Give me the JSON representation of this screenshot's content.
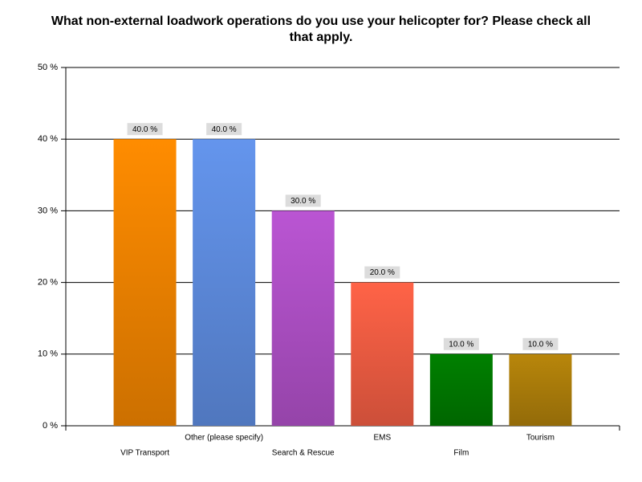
{
  "chart_data": {
    "type": "bar",
    "title": "What non-external loadwork operations do you use your helicopter for? Please check all that apply.",
    "categories": [
      "VIP Transport",
      "Other (please specify)",
      "Search & Rescue",
      "EMS",
      "Film",
      "Tourism"
    ],
    "values": [
      40,
      40,
      30,
      20,
      10,
      10
    ],
    "value_labels": [
      "40.0 %",
      "40.0 %",
      "30.0 %",
      "20.0 %",
      "10.0 %",
      "10.0 %"
    ],
    "colors": [
      "#ff8c00",
      "#6495ed",
      "#ba55d3",
      "#ff6347",
      "#008000",
      "#b8860b"
    ],
    "ylim": [
      0,
      50
    ],
    "yticks": [
      {
        "value": 0,
        "label": "0 %"
      },
      {
        "value": 10,
        "label": "10 %"
      },
      {
        "value": 20,
        "label": "20 %"
      },
      {
        "value": 30,
        "label": "30 %"
      },
      {
        "value": 40,
        "label": "40 %"
      },
      {
        "value": 50,
        "label": "50 %"
      }
    ],
    "grid": true
  }
}
